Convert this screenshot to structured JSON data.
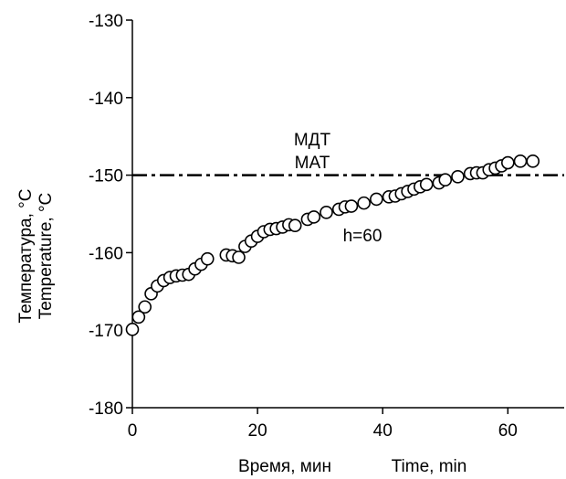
{
  "chart_data": {
    "type": "scatter",
    "title": "",
    "xlabel_ru": "Время, мин",
    "xlabel_en": "Time, min",
    "ylabel_ru": "Температура, °C",
    "ylabel_en": "Temperature, °C",
    "xlim": [
      0,
      69
    ],
    "ylim": [
      -180,
      -130
    ],
    "x_ticks": [
      0,
      20,
      40,
      60
    ],
    "y_ticks": [
      -130,
      -140,
      -150,
      -160,
      -170,
      -180
    ],
    "x_tick_labels": [
      "0",
      "20",
      "40",
      "60"
    ],
    "y_tick_labels": [
      "-130",
      "-140",
      "-150",
      "-160",
      "-170",
      "-180"
    ],
    "grid": false,
    "reference_line": {
      "y": -150,
      "label_ru": "МДТ",
      "label_en": "MAT",
      "style": "dash-dot"
    },
    "annotation": {
      "text": "h=60",
      "x": 31,
      "y": -157.8
    },
    "series": [
      {
        "marker": "open-circle",
        "points": [
          [
            0,
            -169.9
          ],
          [
            1,
            -168.3
          ],
          [
            2,
            -167.0
          ],
          [
            3,
            -165.3
          ],
          [
            4,
            -164.3
          ],
          [
            5,
            -163.6
          ],
          [
            6,
            -163.2
          ],
          [
            7,
            -163.0
          ],
          [
            8,
            -162.9
          ],
          [
            9,
            -162.8
          ],
          [
            10,
            -162.1
          ],
          [
            11,
            -161.5
          ],
          [
            12,
            -160.8
          ],
          [
            15,
            -160.3
          ],
          [
            16,
            -160.4
          ],
          [
            17,
            -160.6
          ],
          [
            18,
            -159.2
          ],
          [
            19,
            -158.5
          ],
          [
            20,
            -157.9
          ],
          [
            21,
            -157.3
          ],
          [
            22,
            -157.0
          ],
          [
            23,
            -156.9
          ],
          [
            24,
            -156.7
          ],
          [
            25,
            -156.4
          ],
          [
            26,
            -156.5
          ],
          [
            28,
            -155.7
          ],
          [
            29,
            -155.4
          ],
          [
            31,
            -154.8
          ],
          [
            33,
            -154.4
          ],
          [
            34,
            -154.1
          ],
          [
            35,
            -154.0
          ],
          [
            37,
            -153.6
          ],
          [
            39,
            -153.1
          ],
          [
            41,
            -152.8
          ],
          [
            42,
            -152.7
          ],
          [
            43,
            -152.4
          ],
          [
            44,
            -152.1
          ],
          [
            45,
            -151.8
          ],
          [
            46,
            -151.5
          ],
          [
            47,
            -151.2
          ],
          [
            49,
            -151.0
          ],
          [
            50,
            -150.6
          ],
          [
            52,
            -150.2
          ],
          [
            54,
            -149.8
          ],
          [
            55,
            -149.7
          ],
          [
            56,
            -149.7
          ],
          [
            57,
            -149.3
          ],
          [
            58,
            -149.1
          ],
          [
            59,
            -148.8
          ],
          [
            60,
            -148.4
          ],
          [
            62,
            -148.2
          ],
          [
            64,
            -148.2
          ]
        ]
      }
    ]
  }
}
